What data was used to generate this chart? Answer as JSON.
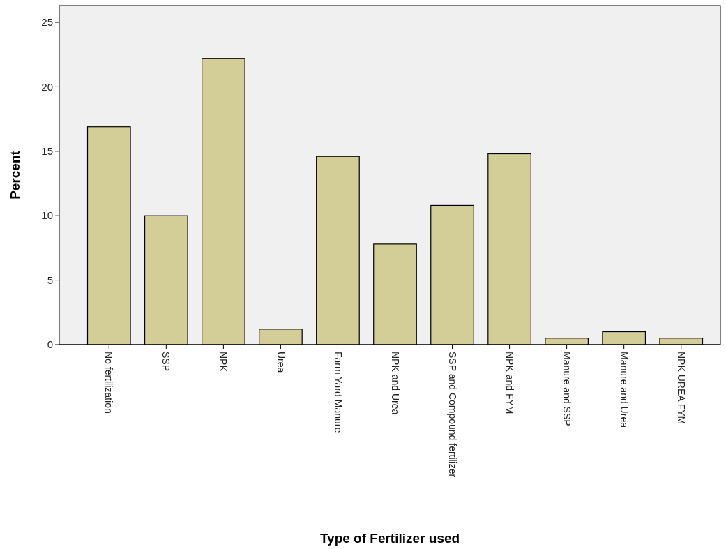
{
  "chart_data": {
    "type": "bar",
    "xlabel": "Type of Fertilizer used",
    "ylabel": "Percent",
    "categories": [
      "No fertilization",
      "SSP",
      "NPK",
      "Urea",
      "Farm Yard Manure",
      "NPK and Urea",
      "SSP and Compound fertilizer",
      "NPK and FYM",
      "Manure and SSP",
      "Manure and Urea",
      "NPK UREA FYM"
    ],
    "values": [
      16.9,
      10.0,
      22.2,
      1.2,
      14.6,
      7.8,
      10.8,
      14.8,
      0.5,
      1.0,
      0.5
    ],
    "color": "#d3ce98",
    "ylim": [
      0,
      26.3
    ],
    "yticks": [
      0,
      5,
      10,
      15,
      20,
      25
    ],
    "grid": false
  }
}
